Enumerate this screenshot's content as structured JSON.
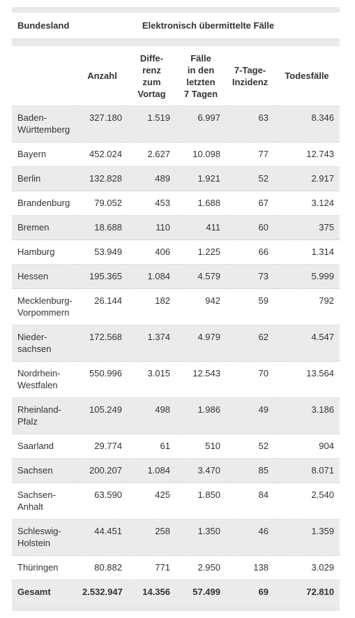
{
  "table": {
    "header": [
      "Bundesland",
      "Elektronisch übermittelte Fälle"
    ],
    "columns": [
      "Anzahl",
      "Diffe-\nrenz\nzum\nVortag",
      "Fälle\nin den\nletzten\n7 Tagen",
      "7-Tage-\nInzidenz",
      "Todesfälle"
    ],
    "rows": [
      [
        "Baden-\nWürttemberg",
        "327.180",
        "1.519",
        "6.997",
        "63",
        "8.346"
      ],
      [
        "Bayern",
        "452.024",
        "2.627",
        "10.098",
        "77",
        "12.743"
      ],
      [
        "Berlin",
        "132.828",
        "489",
        "1.921",
        "52",
        "2.917"
      ],
      [
        "Brandenburg",
        "79.052",
        "453",
        "1.688",
        "67",
        "3.124"
      ],
      [
        "Bremen",
        "18.688",
        "110",
        "411",
        "60",
        "375"
      ],
      [
        "Hamburg",
        "53.949",
        "406",
        "1.225",
        "66",
        "1.314"
      ],
      [
        "Hessen",
        "195.365",
        "1.084",
        "4.579",
        "73",
        "5.999"
      ],
      [
        "Mecklenburg-\nVorpommern",
        "26.144",
        "182",
        "942",
        "59",
        "792"
      ],
      [
        "Nieder-\nsachsen",
        "172.568",
        "1.374",
        "4.979",
        "62",
        "4.547"
      ],
      [
        "Nordrhein-\nWestfalen",
        "550.996",
        "3.015",
        "12.543",
        "70",
        "13.564"
      ],
      [
        "Rheinland-\nPfalz",
        "105.249",
        "498",
        "1.986",
        "49",
        "3.186"
      ],
      [
        "Saarland",
        "29.774",
        "61",
        "510",
        "52",
        "904"
      ],
      [
        "Sachsen",
        "200.207",
        "1.084",
        "3.470",
        "85",
        "8.071"
      ],
      [
        "Sachsen-\nAnhalt",
        "63.590",
        "425",
        "1.850",
        "84",
        "2.540"
      ],
      [
        "Schleswig-\nHolstein",
        "44.451",
        "258",
        "1.350",
        "46",
        "1.359"
      ],
      [
        "Thüringen",
        "80.882",
        "771",
        "2.950",
        "138",
        "3.029"
      ]
    ],
    "total": [
      "Gesamt",
      "2.532.947",
      "14.356",
      "57.499",
      "69",
      "72.810"
    ]
  }
}
